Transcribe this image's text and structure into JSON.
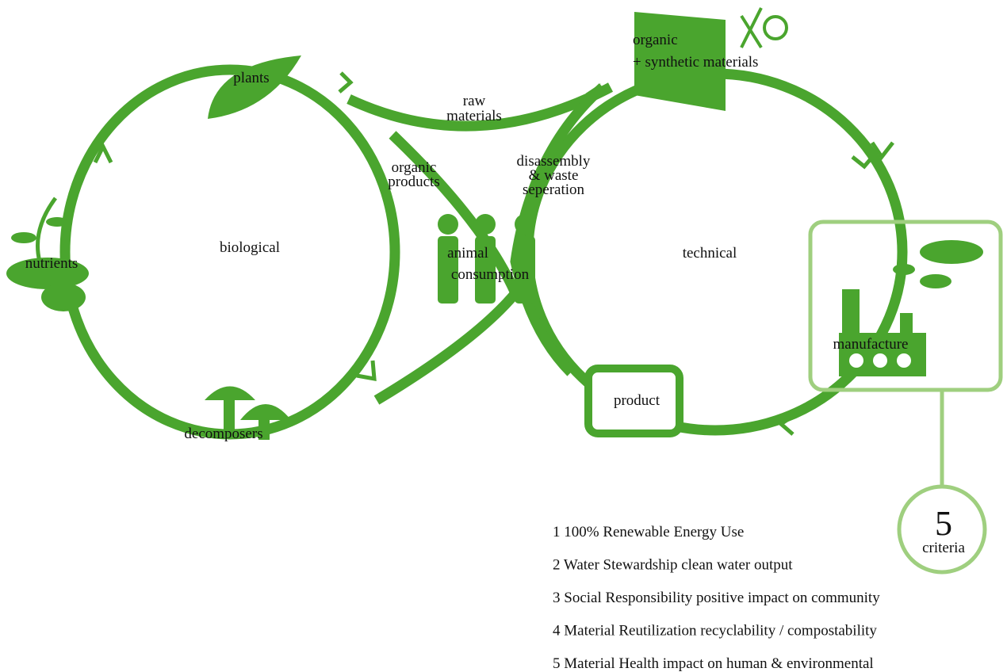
{
  "cycles": {
    "left": "biological",
    "right": "technical"
  },
  "nodes": [
    {
      "label": [
        "plants"
      ]
    },
    {
      "label": [
        "raw",
        "materials"
      ]
    },
    {
      "label": [
        "organic",
        "+ synthetic materials"
      ]
    },
    {
      "label": [
        "organic",
        "products"
      ]
    },
    {
      "label": [
        "disassembly",
        "& waste",
        "seperation"
      ]
    },
    {
      "label": [
        "nutrients"
      ]
    },
    {
      "label": [
        "animal",
        "consumption"
      ]
    },
    {
      "label": [
        "manufacture"
      ]
    },
    {
      "label": [
        "product"
      ]
    },
    {
      "label": [
        "decomposers"
      ]
    }
  ],
  "criteria": {
    "number": "5",
    "label": "criteria",
    "items": [
      "1 100% Renewable Energy Use",
      "2 Water Stewardship clean water output",
      "3 Social Responsibility positive impact on community",
      "4 Material Reutilization recyclability / compostability",
      "5 Material Health impact on human & environmental"
    ]
  }
}
